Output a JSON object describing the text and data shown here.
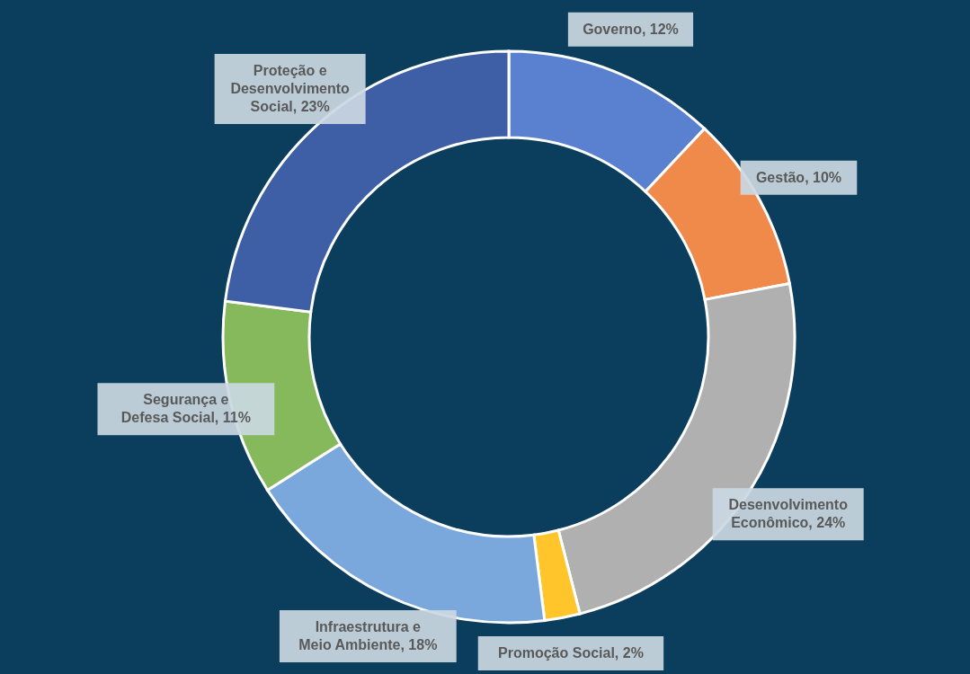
{
  "chart_data": {
    "type": "donut",
    "categories": [
      "Governo",
      "Gestão",
      "Desenvolvimento Econômico",
      "Promoção Social",
      "Infraestrutura e Meio Ambiente",
      "Segurança e Defesa Social",
      "Proteção e Desenvolvimento Social"
    ],
    "values": [
      12,
      10,
      24,
      2,
      18,
      11,
      23
    ],
    "value_labels": [
      "12%",
      "10%",
      "24%",
      "2%",
      "18%",
      "11%",
      "23%"
    ],
    "colors": [
      "#5a80d0",
      "#f08a4b",
      "#b0b0b0",
      "#ffc52a",
      "#7aa8dc",
      "#86b85c",
      "#3e5fa6"
    ]
  }
}
